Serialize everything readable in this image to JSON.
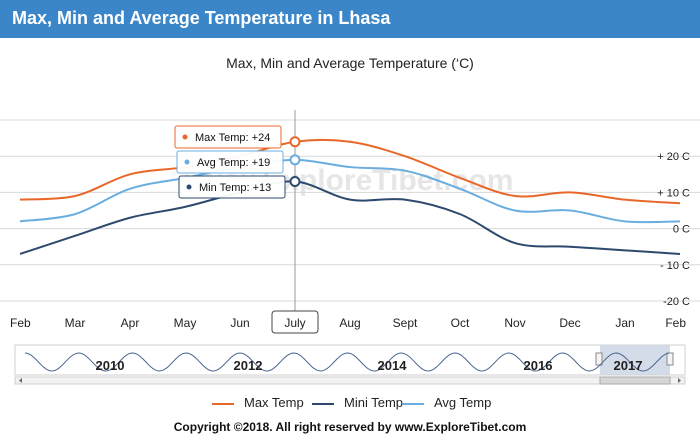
{
  "banner": {
    "title": "Max, Min and Average Temperature in Lhasa"
  },
  "watermark": "www.ExploreTibet.com",
  "chart_data": {
    "type": "line",
    "title": "Max, Min and Average Temperature (‘C)",
    "xlabel": "",
    "ylabel": "",
    "categories": [
      "Feb",
      "Mar",
      "Apr",
      "May",
      "Jun",
      "July",
      "Aug",
      "Sept",
      "Oct",
      "Nov",
      "Dec",
      "Jan",
      "Feb"
    ],
    "y_ticks": [
      "+ 20 C",
      "+ 10 C",
      "0 C",
      "- 10 C",
      "-20 C"
    ],
    "y_tick_values": [
      20,
      10,
      0,
      -10,
      -20
    ],
    "ylim": [
      -20,
      30
    ],
    "grid": true,
    "series": [
      {
        "name": "Max Temp",
        "color": "#e8672a",
        "values": [
          8,
          9,
          15,
          17,
          20,
          24,
          24,
          20,
          14,
          9,
          10,
          8,
          7
        ]
      },
      {
        "name": "Avg Temp",
        "color": "#6aaee0",
        "values": [
          2,
          4,
          11,
          14,
          17,
          19,
          17,
          16,
          11,
          5,
          5,
          2,
          2
        ]
      },
      {
        "name": "Mini Temp",
        "color": "#2d4a6e",
        "values": [
          -7,
          -2,
          3,
          6,
          10,
          13,
          8,
          8,
          4,
          -4,
          -5,
          -6,
          -7
        ]
      }
    ],
    "tooltip": {
      "category": "July",
      "items": [
        {
          "label": "Max Temp: +24",
          "color": "#e8672a"
        },
        {
          "label": "Avg Temp: +19",
          "color": "#6aaee0"
        },
        {
          "label": "Min Temp: +13",
          "color": "#2d4a6e"
        }
      ]
    },
    "navigator": {
      "years": [
        "2010",
        "2012",
        "2014",
        "2016",
        "2017"
      ]
    }
  },
  "legend": {
    "items": [
      {
        "label": "Max Temp",
        "color": "#e8672a"
      },
      {
        "label": "Mini Temp",
        "color": "#2d4a6e"
      },
      {
        "label": "Avg Temp",
        "color": "#6aaee0"
      }
    ]
  },
  "copyright": "Copyright ©2018.  All right reserved by www.ExploreTibet.com"
}
